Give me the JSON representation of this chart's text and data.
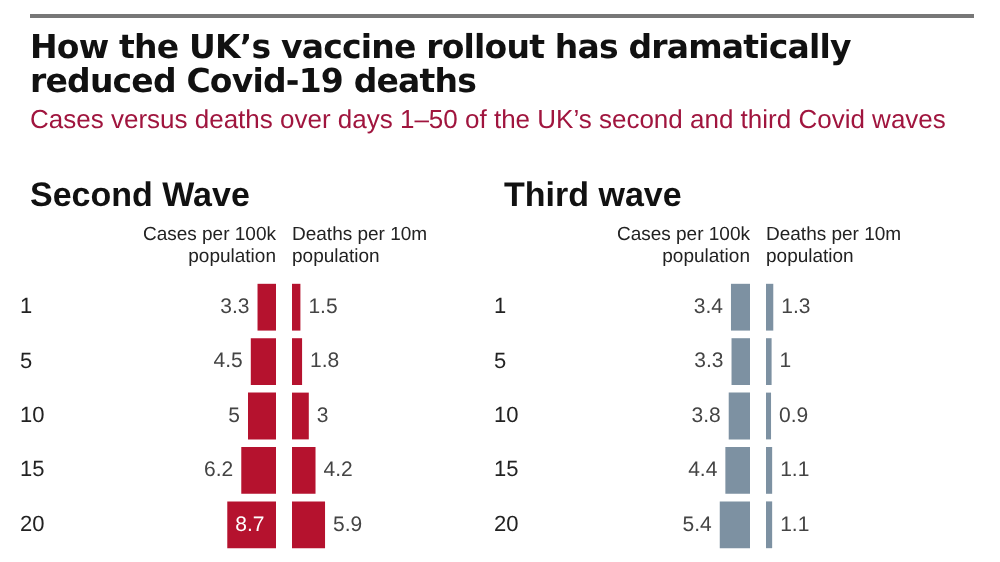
{
  "chart_data": [
    {
      "type": "other",
      "title": "How the UK’s vaccine rollout has dramatically reduced Covid-19 deaths",
      "subtitle": "Cases versus deaths over days 1–50 of the UK’s second and third Covid waves"
    },
    {
      "type": "bar",
      "orientation": "horizontal",
      "title": "Second Wave",
      "categories": [
        "1",
        "5",
        "10",
        "15",
        "20"
      ],
      "tick_labels": "y",
      "data_labels": true,
      "series": [
        {
          "name": "Cases per 100k population",
          "color": "#b5122e",
          "values": [
            3.3,
            4.5,
            5,
            6.2,
            8.7
          ]
        }
      ]
    },
    {
      "type": "bar",
      "orientation": "horizontal",
      "categories": [
        "1",
        "5",
        "10",
        "15",
        "20"
      ],
      "tick_labels": false,
      "data_labels": true,
      "series": [
        {
          "name": "Deaths per 10m population",
          "color": "#b5122e",
          "values": [
            1.5,
            1.8,
            3,
            4.2,
            5.9
          ]
        }
      ]
    },
    {
      "type": "bar",
      "orientation": "horizontal",
      "title": "Third wave",
      "categories": [
        "1",
        "5",
        "10",
        "15",
        "20"
      ],
      "tick_labels": "y",
      "data_labels": true,
      "series": [
        {
          "name": "Cases per 100k population",
          "color": "#7d91a2",
          "values": [
            3.4,
            3.3,
            3.8,
            4.4,
            5.4
          ]
        }
      ]
    },
    {
      "type": "bar",
      "orientation": "horizontal",
      "categories": [
        "1",
        "5",
        "10",
        "15",
        "20"
      ],
      "tick_labels": false,
      "data_labels": true,
      "series": [
        {
          "name": "Deaths per 10m population",
          "color": "#7d91a2",
          "values": [
            1.3,
            1,
            0.9,
            1.1,
            1.1
          ]
        }
      ]
    }
  ]
}
